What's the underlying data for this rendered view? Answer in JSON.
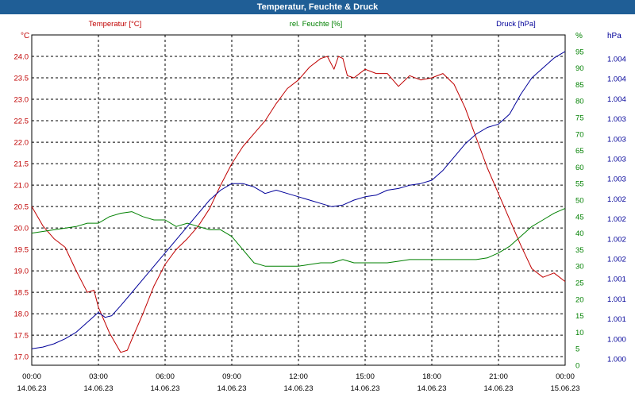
{
  "chart_data": {
    "type": "line",
    "title": "Temperatur, Feuchte & Druck",
    "x_ticks": [
      {
        "time": "00:00",
        "date": "14.06.23"
      },
      {
        "time": "03:00",
        "date": "14.06.23"
      },
      {
        "time": "06:00",
        "date": "14.06.23"
      },
      {
        "time": "09:00",
        "date": "14.06.23"
      },
      {
        "time": "12:00",
        "date": "14.06.23"
      },
      {
        "time": "15:00",
        "date": "14.06.23"
      },
      {
        "time": "18:00",
        "date": "14.06.23"
      },
      {
        "time": "21:00",
        "date": "14.06.23"
      },
      {
        "time": "00:00",
        "date": "15.06.23"
      }
    ],
    "xlim_hours": [
      0,
      24
    ],
    "grid": true,
    "axes": {
      "temperature": {
        "label": "Temperatur [°C]",
        "unit": "°C",
        "color": "#c00000",
        "ylim": [
          16.8,
          24.5
        ],
        "ticks": [
          "24.0",
          "23.5",
          "23.0",
          "22.5",
          "22.0",
          "21.5",
          "21.0",
          "20.5",
          "20.0",
          "19.5",
          "19.0",
          "18.5",
          "18.0",
          "17.5",
          "17.0"
        ]
      },
      "humidity": {
        "label": "rel. Feuchte [%]",
        "unit": "%",
        "color": "#008000",
        "ylim": [
          0,
          100
        ],
        "ticks": [
          "95",
          "90",
          "85",
          "80",
          "75",
          "70",
          "65",
          "60",
          "55",
          "50",
          "45",
          "40",
          "35",
          "30",
          "25",
          "20",
          "15",
          "10",
          "5",
          "0"
        ]
      },
      "pressure": {
        "label": "Druck [hPa]",
        "unit": "hPa",
        "color": "#000099",
        "ylim": [
          0,
          100
        ],
        "ticks": [
          "1.004",
          "1.004",
          "1.004",
          "1.003",
          "1.003",
          "1.003",
          "1.003",
          "1.002",
          "1.002",
          "1.002",
          "1.002",
          "1.001",
          "1.001",
          "1.001",
          "1.000",
          "1.000"
        ]
      }
    },
    "series": [
      {
        "name": "Temperatur",
        "axis": "temperature",
        "color": "#c00000",
        "x": [
          0,
          0.5,
          1,
          1.5,
          2,
          2.5,
          2.8,
          3,
          3.5,
          4,
          4.3,
          4.5,
          5,
          5.5,
          6,
          6.5,
          7,
          7.5,
          8,
          8.5,
          9,
          9.5,
          10,
          10.5,
          11,
          11.5,
          12,
          12.5,
          13,
          13.3,
          13.6,
          13.8,
          14,
          14.2,
          14.5,
          15,
          15.5,
          16,
          16.5,
          17,
          17.5,
          18,
          18.5,
          19,
          19.5,
          20,
          20.5,
          21,
          21.5,
          22,
          22.5,
          23,
          23.5,
          24
        ],
        "y": [
          20.5,
          20.05,
          19.75,
          19.55,
          19.0,
          18.5,
          18.55,
          18.15,
          17.55,
          17.1,
          17.15,
          17.4,
          18.0,
          18.65,
          19.15,
          19.5,
          19.75,
          20.05,
          20.45,
          21.0,
          21.5,
          21.9,
          22.2,
          22.5,
          22.9,
          23.25,
          23.45,
          23.75,
          23.95,
          24.0,
          23.7,
          24.0,
          23.95,
          23.55,
          23.5,
          23.7,
          23.6,
          23.6,
          23.3,
          23.55,
          23.45,
          23.5,
          23.6,
          23.35,
          22.8,
          22.1,
          21.4,
          20.8,
          20.2,
          19.6,
          19.05,
          18.85,
          18.95,
          18.75
        ]
      },
      {
        "name": "rel. Feuchte",
        "axis": "humidity",
        "color": "#008000",
        "x": [
          0,
          1,
          2,
          2.5,
          3,
          3.5,
          4,
          4.5,
          5,
          5.5,
          6,
          6.5,
          7,
          7.5,
          8,
          8.5,
          9,
          9.5,
          10,
          10.5,
          11,
          11.5,
          12,
          12.5,
          13,
          13.5,
          14,
          14.5,
          15,
          15.5,
          16,
          16.5,
          17,
          17.5,
          18,
          18.5,
          19,
          19.5,
          20,
          20.5,
          21,
          21.5,
          22,
          22.5,
          23,
          23.5,
          24
        ],
        "y": [
          40,
          41,
          42,
          43,
          43,
          45,
          46,
          46.5,
          45,
          44,
          44,
          42,
          43,
          42,
          41,
          41,
          39,
          35,
          31,
          30,
          30,
          30,
          30,
          30.5,
          31,
          31,
          32,
          31,
          31,
          31,
          31,
          31.5,
          32,
          32,
          32,
          32,
          32,
          32,
          32,
          32.5,
          34,
          36,
          39,
          42,
          44,
          46,
          47.5
        ]
      },
      {
        "name": "Druck",
        "axis": "pressure",
        "color": "#000099",
        "x": [
          0,
          0.5,
          1,
          1.5,
          2,
          2.5,
          3,
          3.3,
          3.6,
          4,
          4.5,
          5,
          5.5,
          6,
          6.5,
          7,
          7.5,
          8,
          8.5,
          9,
          9.5,
          10,
          10.5,
          11,
          11.5,
          12,
          12.5,
          13,
          13.5,
          14,
          14.5,
          15,
          15.5,
          16,
          16.5,
          17,
          17.5,
          18,
          18.5,
          19,
          19.5,
          20,
          20.5,
          21,
          21.5,
          22,
          22.5,
          23,
          23.5,
          24
        ],
        "y": [
          5,
          5.5,
          6.5,
          8,
          10,
          13,
          16,
          14.5,
          15,
          18,
          22,
          26,
          30,
          34,
          38,
          42,
          46,
          50,
          53,
          55,
          55,
          54,
          52,
          53,
          52,
          51,
          50,
          49,
          48,
          48.5,
          50,
          51,
          51.5,
          53,
          53.5,
          54.5,
          55,
          56,
          59,
          63,
          67,
          70,
          72,
          73,
          76,
          82,
          87,
          90,
          93,
          95
        ]
      }
    ]
  }
}
